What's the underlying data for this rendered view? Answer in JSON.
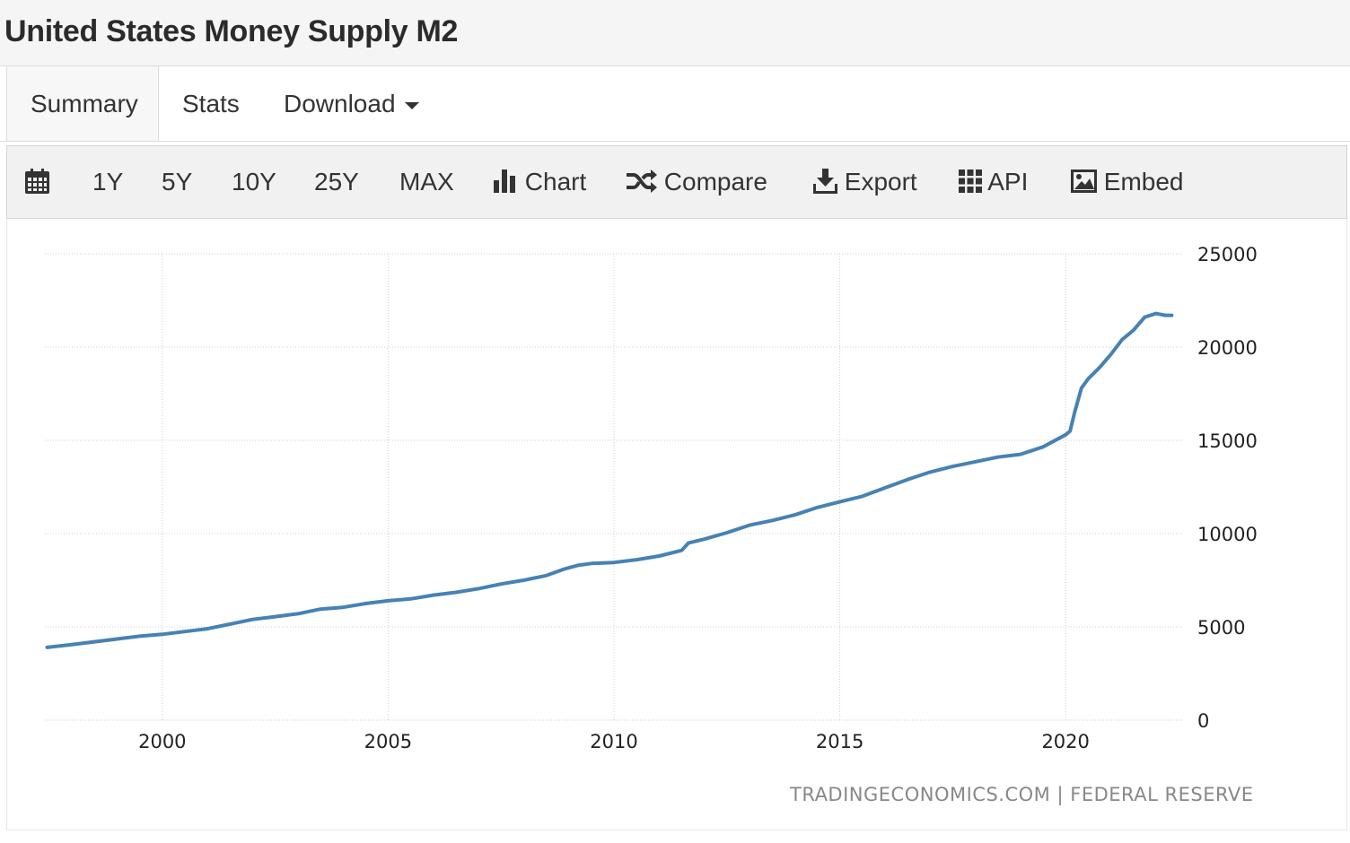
{
  "header": {
    "title": "United States Money Supply M2"
  },
  "tabs": [
    {
      "label": "Summary"
    },
    {
      "label": "Stats"
    },
    {
      "label": "Download"
    }
  ],
  "toolbar": {
    "ranges": [
      "1Y",
      "5Y",
      "10Y",
      "25Y",
      "MAX"
    ],
    "chart_label": "Chart",
    "compare_label": "Compare",
    "export_label": "Export",
    "api_label": "API",
    "embed_label": "Embed"
  },
  "source": {
    "site": "TRADINGECONOMICS.COM",
    "separator": "|",
    "provider": "FEDERAL RESERVE"
  },
  "colors": {
    "line": "#4682b4",
    "grid": "#cfcfcf"
  },
  "chart_data": {
    "type": "line",
    "x_tick_labels": [
      "2000",
      "2005",
      "2010",
      "2015",
      "2020"
    ],
    "y_tick_labels": [
      "0",
      "5000",
      "10000",
      "15000",
      "20000",
      "25000"
    ],
    "ylim": [
      0,
      25000
    ],
    "xlim": [
      1997.4,
      2022.6
    ],
    "grid": true,
    "series": [
      {
        "x": [
          1997.45,
          1998.0,
          1998.5,
          1999.0,
          1999.5,
          2000.0,
          2000.5,
          2001.0,
          2001.5,
          2002.0,
          2002.5,
          2003.0,
          2003.5,
          2004.0,
          2004.5,
          2005.0,
          2005.5,
          2006.0,
          2006.5,
          2007.0,
          2007.5,
          2008.0,
          2008.5,
          2008.9,
          2009.2,
          2009.5,
          2010.0,
          2010.5,
          2011.0,
          2011.5,
          2011.65,
          2012.0,
          2012.5,
          2013.0,
          2013.5,
          2014.0,
          2014.5,
          2015.0,
          2015.5,
          2016.0,
          2016.5,
          2017.0,
          2017.5,
          2018.0,
          2018.5,
          2019.0,
          2019.5,
          2020.0,
          2020.1,
          2020.2,
          2020.35,
          2020.5,
          2020.75,
          2021.0,
          2021.25,
          2021.5,
          2021.75,
          2022.0,
          2022.2,
          2022.35
        ],
        "values": [
          3900,
          4050,
          4200,
          4350,
          4500,
          4600,
          4750,
          4900,
          5150,
          5400,
          5550,
          5700,
          5950,
          6050,
          6250,
          6400,
          6500,
          6700,
          6850,
          7050,
          7300,
          7500,
          7750,
          8100,
          8300,
          8400,
          8450,
          8600,
          8800,
          9100,
          9500,
          9700,
          10050,
          10450,
          10700,
          11000,
          11400,
          11700,
          12000,
          12450,
          12900,
          13300,
          13600,
          13850,
          14100,
          14250,
          14650,
          15300,
          15500,
          16500,
          17800,
          18300,
          18900,
          19600,
          20400,
          20900,
          21600,
          21800,
          21700,
          21700
        ]
      }
    ]
  }
}
